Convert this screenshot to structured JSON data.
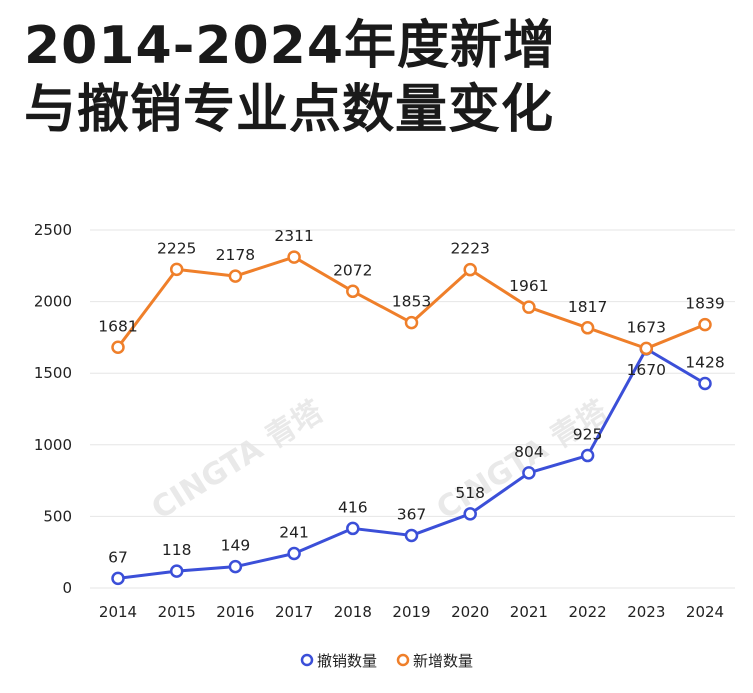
{
  "title_line1": "2014-2024年度新增",
  "title_line2": "与撤销专业点数量变化",
  "watermark": [
    "CINGTA 青塔",
    "CINGTA 青塔"
  ],
  "chart_data": {
    "type": "line",
    "categories": [
      "2014",
      "2015",
      "2016",
      "2017",
      "2018",
      "2019",
      "2020",
      "2021",
      "2022",
      "2023",
      "2024"
    ],
    "ylim": [
      0,
      2500
    ],
    "yticks": [
      0,
      500,
      1000,
      1500,
      2000,
      2500
    ],
    "grid": true,
    "legend_position": "bottom",
    "series": [
      {
        "name": "撤销数量",
        "color": "#3b4fd8",
        "values": [
          67,
          118,
          149,
          241,
          416,
          367,
          518,
          804,
          925,
          1670,
          1428
        ]
      },
      {
        "name": "新增数量",
        "color": "#ef7f2a",
        "values": [
          1681,
          2225,
          2178,
          2311,
          2072,
          1853,
          2223,
          1961,
          1817,
          1673,
          1839
        ]
      }
    ]
  }
}
